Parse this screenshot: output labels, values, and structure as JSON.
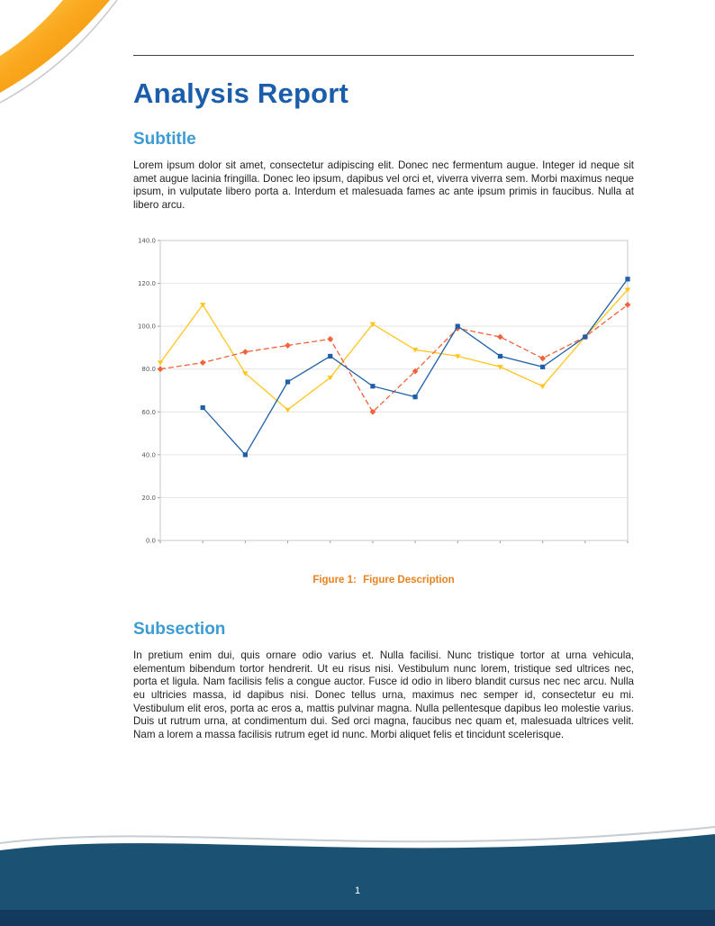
{
  "page": {
    "title": "Analysis Report",
    "page_number": "1"
  },
  "sections": {
    "subtitle": {
      "heading": "Subtitle",
      "body": "Lorem ipsum dolor sit amet, consectetur adipiscing elit. Donec nec fermentum augue. Integer id neque sit amet augue lacinia fringilla. Donec leo ipsum, dapibus vel orci et, viverra viverra sem. Morbi maximus neque ipsum, in vulputate libero porta a. Interdum et malesuada fames ac ante ipsum primis in faucibus. Nulla at libero arcu."
    },
    "subsection": {
      "heading": "Subsection",
      "body": "In pretium enim dui, quis ornare odio varius et. Nulla facilisi. Nunc tristique tortor at urna vehicula, elementum bibendum tortor hendrerit. Ut eu risus nisi. Vestibulum nunc lorem, tristique sed ultrices nec, porta et ligula. Nam facilisis felis a congue auctor. Fusce id odio in libero blandit cursus nec nec arcu. Nulla eu ultricies massa, id dapibus nisi. Donec tellus urna, maximus nec semper id, consectetur eu mi. Vestibulum elit eros, porta ac eros a, mattis pulvinar magna. Nulla pellentesque dapibus leo molestie varius. Duis ut rutrum urna, at condimentum dui. Sed orci magna, faucibus nec quam et, malesuada ultrices velit. Nam a lorem a massa facilisis rutrum eget id nunc. Morbi aliquet felis et tincidunt scelerisque."
    }
  },
  "figure": {
    "caption_label": "Figure 1:",
    "caption_text": "Figure Description"
  },
  "colors": {
    "title_blue": "#1A5DAB",
    "heading_blue": "#3D9BD3",
    "caption_orange": "#E8821E",
    "footer_navy": "#1B5173",
    "footer_navy_dark": "#13395C",
    "decoration_orange": "#F29100",
    "decoration_yellow": "#FFD65E"
  },
  "chart_data": {
    "type": "line",
    "title": "",
    "xlabel": "",
    "ylabel": "",
    "x": [
      1,
      2,
      3,
      4,
      5,
      6,
      7,
      8,
      9,
      10,
      11,
      12
    ],
    "ylim": [
      0,
      140
    ],
    "yticks": [
      "0.0",
      "20.0",
      "40.0",
      "60.0",
      "80.0",
      "100.0",
      "120.0",
      "140.0"
    ],
    "grid": true,
    "legend": "none",
    "series": [
      {
        "name": "series-blue",
        "color": "#1F5FA8",
        "style": "solid",
        "marker": "square",
        "values": [
          null,
          62,
          40,
          74,
          86,
          72,
          67,
          100,
          86,
          81,
          95,
          122
        ]
      },
      {
        "name": "series-yellow",
        "color": "#FFC51D",
        "style": "solid",
        "marker": "triangle",
        "values": [
          83,
          110,
          78,
          61,
          76,
          101,
          89,
          86,
          81,
          72,
          95,
          117
        ]
      },
      {
        "name": "series-orange",
        "color": "#F0633C",
        "style": "dashed",
        "marker": "diamond",
        "values": [
          80,
          83,
          88,
          91,
          94,
          60,
          79,
          99,
          95,
          85,
          95,
          110
        ]
      }
    ]
  }
}
